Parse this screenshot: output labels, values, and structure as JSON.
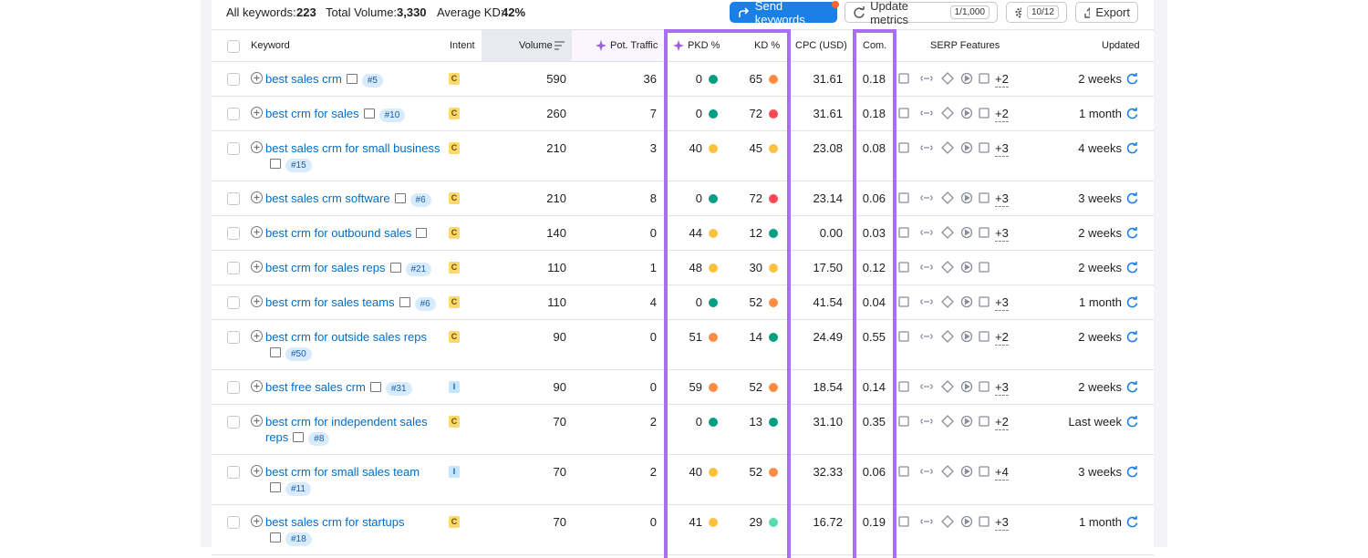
{
  "toolbar": {
    "all_keywords_label": "All keywords:",
    "all_keywords": "223",
    "total_volume_label": "Total Volume:",
    "total_volume": "3,330",
    "avg_kd_label": "Average KD:",
    "avg_kd": "42%",
    "send": "Send keywords",
    "update": "Update metrics",
    "update_count": "1/1,000",
    "settings_count": "10/12",
    "export": "Export"
  },
  "table": {
    "headers": {
      "keyword": "Keyword",
      "intent": "Intent",
      "volume": "Volume",
      "traffic": "Pot. Traffic",
      "pkd": "PKD %",
      "kd": "KD %",
      "cpc": "CPC (USD)",
      "com": "Com.",
      "serp": "SERP Features",
      "updated": "Updated"
    },
    "rows": [
      {
        "keyword": "best sales crm",
        "rank": "#5",
        "intent": "C",
        "volume": "590",
        "traffic": "36",
        "pkd": "0",
        "kd": "65",
        "cpc": "31.61",
        "com": "0.18",
        "serp_more": "+2",
        "updated": "2 weeks"
      },
      {
        "keyword": "best crm for sales",
        "rank": "#10",
        "intent": "C",
        "volume": "260",
        "traffic": "7",
        "pkd": "0",
        "kd": "72",
        "cpc": "31.61",
        "com": "0.18",
        "serp_more": "+2",
        "updated": "1 month"
      },
      {
        "keyword": "best sales crm for small business",
        "rank": "#15",
        "intent": "C",
        "volume": "210",
        "traffic": "3",
        "pkd": "40",
        "kd": "45",
        "cpc": "23.08",
        "com": "0.08",
        "serp_more": "+3",
        "updated": "4 weeks"
      },
      {
        "keyword": "best sales crm software",
        "rank": "#6",
        "intent": "C",
        "volume": "210",
        "traffic": "8",
        "pkd": "0",
        "kd": "72",
        "cpc": "23.14",
        "com": "0.06",
        "serp_more": "+3",
        "updated": "3 weeks"
      },
      {
        "keyword": "best crm for outbound sales",
        "intent": "C",
        "volume": "140",
        "traffic": "0",
        "pkd": "44",
        "kd": "12",
        "cpc": "0.00",
        "com": "0.03",
        "serp_more": "+3",
        "updated": "2 weeks"
      },
      {
        "keyword": "best crm for sales reps",
        "rank": "#21",
        "intent": "C",
        "volume": "110",
        "traffic": "1",
        "pkd": "48",
        "kd": "30",
        "cpc": "17.50",
        "com": "0.12",
        "updated": "2 weeks"
      },
      {
        "keyword": "best crm for sales teams",
        "rank": "#6",
        "intent": "C",
        "volume": "110",
        "traffic": "4",
        "pkd": "0",
        "kd": "52",
        "cpc": "41.54",
        "com": "0.04",
        "serp_more": "+3",
        "updated": "1 month"
      },
      {
        "keyword": "best crm for outside sales reps",
        "rank": "#50",
        "intent": "C",
        "volume": "90",
        "traffic": "0",
        "pkd": "51",
        "kd": "14",
        "cpc": "24.49",
        "com": "0.55",
        "serp_more": "+2",
        "updated": "2 weeks"
      },
      {
        "keyword": "best free sales crm",
        "rank": "#31",
        "intent": "I",
        "volume": "90",
        "traffic": "0",
        "pkd": "59",
        "kd": "52",
        "cpc": "18.54",
        "com": "0.14",
        "serp_more": "+3",
        "updated": "2 weeks"
      },
      {
        "keyword": "best crm for independent sales reps",
        "rank": "#8",
        "intent": "C",
        "volume": "70",
        "traffic": "2",
        "pkd": "0",
        "kd": "13",
        "cpc": "31.10",
        "com": "0.35",
        "serp_more": "+2",
        "updated": "Last week"
      },
      {
        "keyword": "best crm for small sales team",
        "rank": "#11",
        "intent": "I",
        "volume": "70",
        "traffic": "2",
        "pkd": "40",
        "kd": "52",
        "cpc": "32.33",
        "com": "0.06",
        "serp_more": "+4",
        "updated": "3 weeks"
      },
      {
        "keyword": "best sales crm for startups",
        "rank": "#18",
        "intent": "C",
        "volume": "70",
        "traffic": "0",
        "pkd": "41",
        "kd": "29",
        "cpc": "16.72",
        "com": "0.19",
        "serp_more": "+3",
        "updated": "1 month"
      }
    ]
  }
}
